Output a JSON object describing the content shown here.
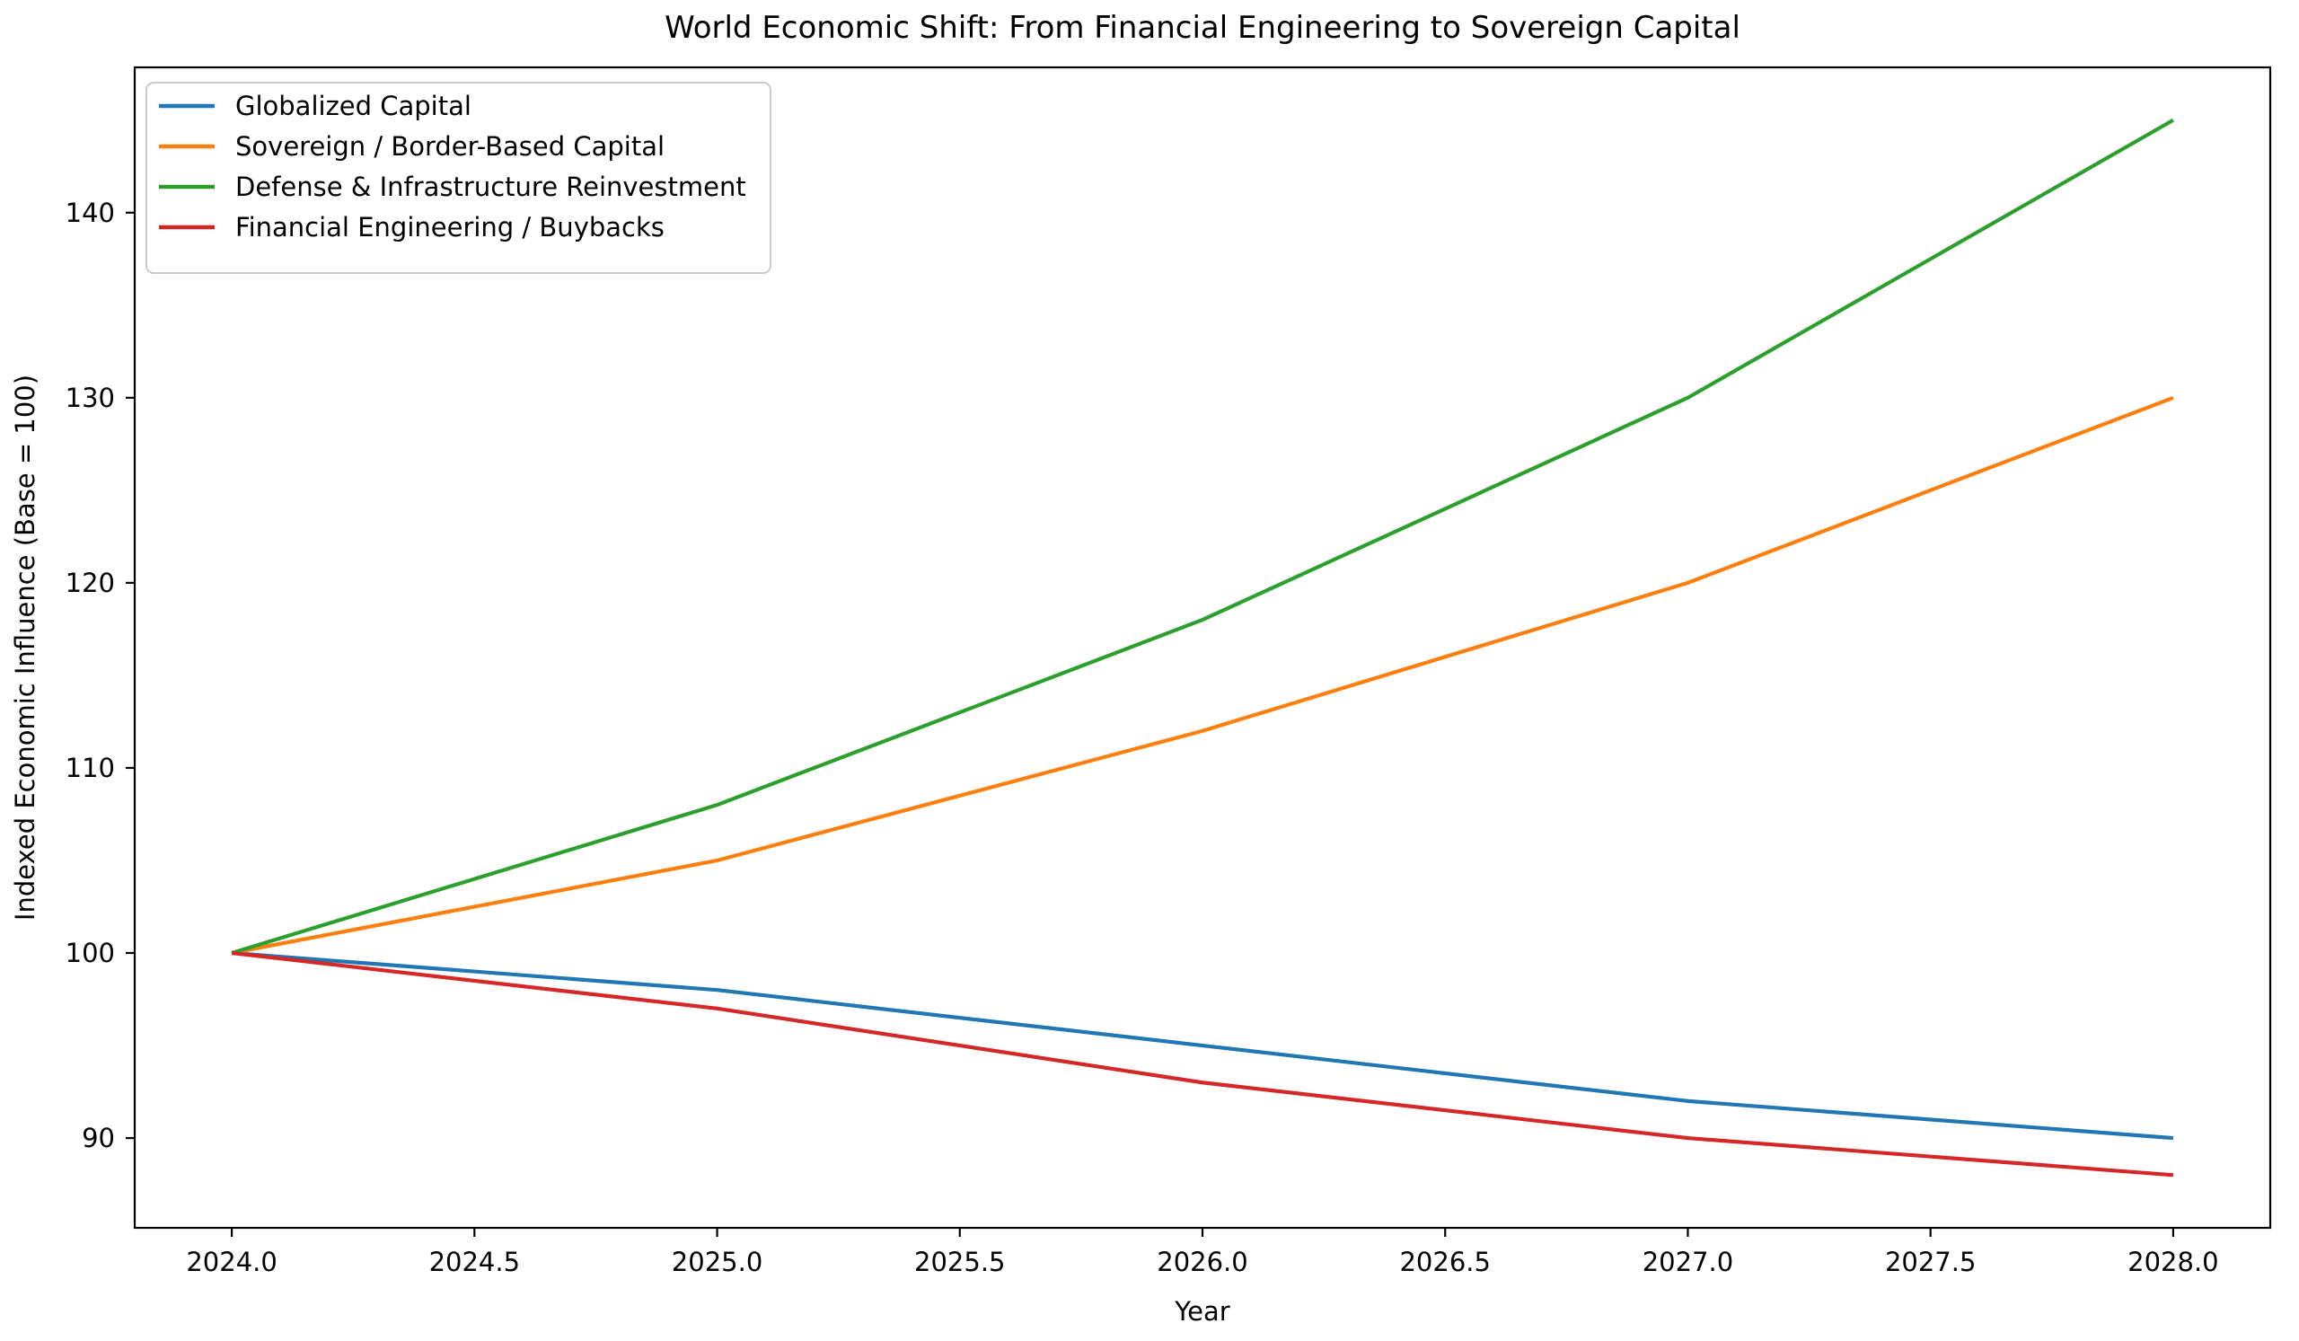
{
  "chart_data": {
    "type": "line",
    "title": "World Economic Shift: From Financial Engineering to Sovereign Capital",
    "xlabel": "Year",
    "ylabel": "Indexed Economic Influence (Base = 100)",
    "x": [
      2024,
      2025,
      2026,
      2027,
      2028
    ],
    "series": [
      {
        "name": "Globalized Capital",
        "color": "#1f77b4",
        "values": [
          100,
          98,
          95,
          92,
          90
        ]
      },
      {
        "name": "Sovereign / Border-Based Capital",
        "color": "#ff7f0e",
        "values": [
          100,
          105,
          112,
          120,
          130
        ]
      },
      {
        "name": "Defense & Infrastructure Reinvestment",
        "color": "#2ca02c",
        "values": [
          100,
          108,
          118,
          130,
          145
        ]
      },
      {
        "name": "Financial Engineering / Buybacks",
        "color": "#d62728",
        "values": [
          100,
          97,
          93,
          90,
          88
        ]
      }
    ],
    "xlim": [
      2023.8,
      2028.2
    ],
    "ylim": [
      85.15,
      147.85
    ],
    "xtick_values": [
      2024.0,
      2024.5,
      2025.0,
      2025.5,
      2026.0,
      2026.5,
      2027.0,
      2027.5,
      2028.0
    ],
    "xtick_labels": [
      "2024.0",
      "2024.5",
      "2025.0",
      "2025.5",
      "2026.0",
      "2026.5",
      "2027.0",
      "2027.5",
      "2028.0"
    ],
    "ytick_values": [
      90,
      100,
      110,
      120,
      130,
      140
    ],
    "ytick_labels": [
      "90",
      "100",
      "110",
      "120",
      "130",
      "140"
    ],
    "grid": false,
    "legend_position": "upper-left",
    "axis_color": "#000000",
    "legend_border_color": "#cccccc",
    "background_color": "#ffffff"
  }
}
